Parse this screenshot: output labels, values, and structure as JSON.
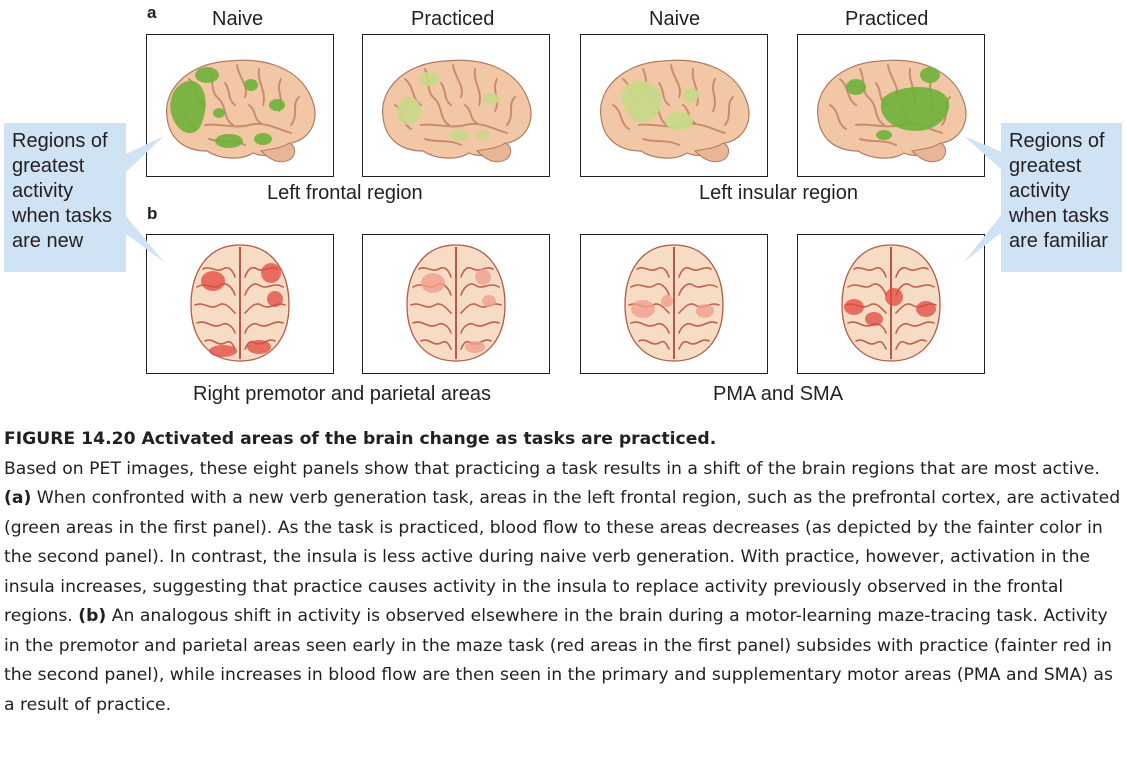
{
  "panel_a": {
    "letter": "a",
    "columns": [
      "Naive",
      "Practiced",
      "Naive",
      "Practiced"
    ],
    "region_labels": [
      "Left frontal region",
      "Left insular region"
    ]
  },
  "panel_b": {
    "letter": "b",
    "region_labels": [
      "Right premotor and parietal areas",
      "PMA and SMA"
    ]
  },
  "callouts": {
    "left": [
      "Regions of",
      "greatest",
      "activity",
      "when tasks",
      "are new"
    ],
    "right": [
      "Regions of",
      "greatest",
      "activity",
      "when tasks",
      "are familiar"
    ]
  },
  "caption": {
    "title": "FIGURE 14.20  Activated areas of the brain change as tasks are practiced.",
    "p1": "Based on PET images, these eight panels show that practicing a task results in a shift of the brain regions that are most active. ",
    "a_marker": "(a)",
    "p2": " When confronted with a new verb generation task, areas in the left frontal region, such as the prefrontal cortex, are activated (green areas in the first panel). As the task is practiced, blood flow to these areas decreases (as depicted by the fainter color in the second panel). In contrast, the insula is less active during naive verb generation. With practice, however, activation in the insula increases, suggesting that practice causes activity in the insula to replace activity previously observed in the frontal regions. ",
    "b_marker": "(b)",
    "p3": " An analogous shift in activity is observed elsewhere in the brain during a motor-learning maze-tracing task. Activity in the premotor and parietal areas seen early in the maze task (red areas in the first panel) subsides with practice (fainter red in the second panel), while increases in blood flow are then seen in the primary and supplementary motor areas (PMA and SMA) as a result of practice."
  },
  "colors": {
    "brain_tissue": "#f2c7a6",
    "brain_sulcus": "#c98d6e",
    "activation_green": "#6fb33a",
    "activation_green_faint": "#c8d98a",
    "activation_red": "#e2493f",
    "activation_red_faint": "#f0a08e",
    "callout_bg": "#cfe3f5"
  }
}
